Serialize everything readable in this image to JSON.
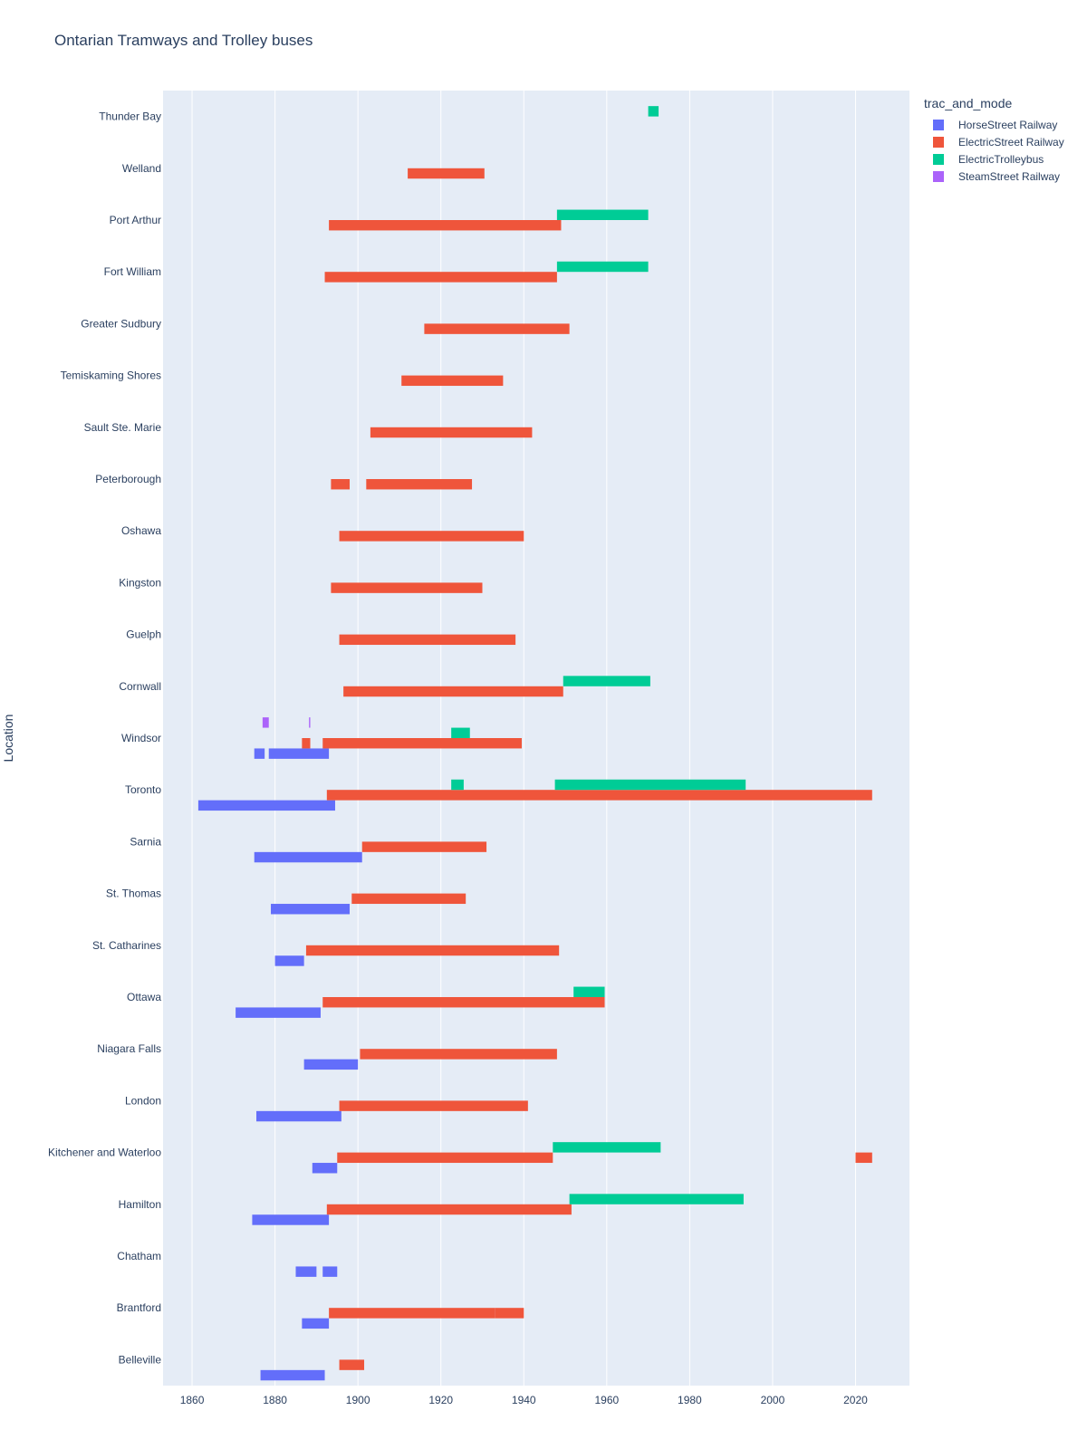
{
  "chart_data": {
    "type": "bar",
    "orientation": "horizontal-timeline",
    "title": "Ontarian Tramways and Trolley buses",
    "ylabel": "Location",
    "xlabel": "",
    "xlim": [
      1853,
      2033
    ],
    "xticks": [
      1860,
      1880,
      1900,
      1920,
      1940,
      1960,
      1980,
      2000,
      2020
    ],
    "grid": true,
    "legend_position": "top-right",
    "legend_title": "trac_and_mode",
    "categories": [
      "Thunder Bay",
      "Welland",
      "Port Arthur",
      "Fort William",
      "Greater Sudbury",
      "Temiskaming Shores",
      "Sault Ste. Marie",
      "Peterborough",
      "Oshawa",
      "Kingston",
      "Guelph",
      "Cornwall",
      "Windsor",
      "Toronto",
      "Sarnia",
      "St. Thomas",
      "St. Catharines",
      "Ottawa",
      "Niagara Falls",
      "London",
      "Kitchener and Waterloo",
      "Hamilton",
      "Chatham",
      "Brantford",
      "Belleville"
    ],
    "series": [
      {
        "name": "HorseStreet Railway",
        "color": "#636efa",
        "intervals": [
          {
            "location": "Windsor",
            "start": 1875,
            "end": 1877.5
          },
          {
            "location": "Windsor",
            "start": 1878.5,
            "end": 1893
          },
          {
            "location": "Toronto",
            "start": 1861.5,
            "end": 1894.5
          },
          {
            "location": "Sarnia",
            "start": 1875,
            "end": 1901
          },
          {
            "location": "St. Thomas",
            "start": 1879,
            "end": 1898
          },
          {
            "location": "St. Catharines",
            "start": 1880,
            "end": 1887
          },
          {
            "location": "Ottawa",
            "start": 1870.5,
            "end": 1891
          },
          {
            "location": "Niagara Falls",
            "start": 1887,
            "end": 1900
          },
          {
            "location": "London",
            "start": 1875.5,
            "end": 1896
          },
          {
            "location": "Kitchener and Waterloo",
            "start": 1889,
            "end": 1895
          },
          {
            "location": "Hamilton",
            "start": 1874.5,
            "end": 1893
          },
          {
            "location": "Chatham",
            "start": 1885,
            "end": 1890
          },
          {
            "location": "Chatham",
            "start": 1891.5,
            "end": 1895
          },
          {
            "location": "Brantford",
            "start": 1886.5,
            "end": 1893
          },
          {
            "location": "Belleville",
            "start": 1876.5,
            "end": 1892
          }
        ]
      },
      {
        "name": "ElectricStreet Railway",
        "color": "#ef553b",
        "intervals": [
          {
            "location": "Welland",
            "start": 1912,
            "end": 1930.5
          },
          {
            "location": "Port Arthur",
            "start": 1893,
            "end": 1949
          },
          {
            "location": "Fort William",
            "start": 1892,
            "end": 1948
          },
          {
            "location": "Greater Sudbury",
            "start": 1916,
            "end": 1951
          },
          {
            "location": "Temiskaming Shores",
            "start": 1910.5,
            "end": 1935
          },
          {
            "location": "Sault Ste. Marie",
            "start": 1903,
            "end": 1942
          },
          {
            "location": "Peterborough",
            "start": 1893.5,
            "end": 1898
          },
          {
            "location": "Peterborough",
            "start": 1902,
            "end": 1927.5
          },
          {
            "location": "Oshawa",
            "start": 1895.5,
            "end": 1940
          },
          {
            "location": "Kingston",
            "start": 1893.5,
            "end": 1930
          },
          {
            "location": "Guelph",
            "start": 1895.5,
            "end": 1938
          },
          {
            "location": "Cornwall",
            "start": 1896.5,
            "end": 1949.5
          },
          {
            "location": "Windsor",
            "start": 1886.5,
            "end": 1888.5
          },
          {
            "location": "Windsor",
            "start": 1891.5,
            "end": 1939.5
          },
          {
            "location": "Toronto",
            "start": 1892.5,
            "end": 2024
          },
          {
            "location": "Sarnia",
            "start": 1901,
            "end": 1931
          },
          {
            "location": "St. Thomas",
            "start": 1898.5,
            "end": 1926
          },
          {
            "location": "St. Catharines",
            "start": 1887.5,
            "end": 1948.5
          },
          {
            "location": "Ottawa",
            "start": 1891.5,
            "end": 1959.5
          },
          {
            "location": "Niagara Falls",
            "start": 1900.5,
            "end": 1948
          },
          {
            "location": "London",
            "start": 1895.5,
            "end": 1941
          },
          {
            "location": "Kitchener and Waterloo",
            "start": 1895,
            "end": 1947
          },
          {
            "location": "Kitchener and Waterloo",
            "start": 2020,
            "end": 2024
          },
          {
            "location": "Hamilton",
            "start": 1892.5,
            "end": 1951.5
          },
          {
            "location": "Brantford",
            "start": 1893,
            "end": 1933
          },
          {
            "location": "Brantford",
            "start": 1933,
            "end": 1940
          },
          {
            "location": "Belleville",
            "start": 1895.5,
            "end": 1901.5
          }
        ]
      },
      {
        "name": "ElectricTrolleybus",
        "color": "#00cc96",
        "intervals": [
          {
            "location": "Thunder Bay",
            "start": 1970,
            "end": 1972.5
          },
          {
            "location": "Port Arthur",
            "start": 1948,
            "end": 1970
          },
          {
            "location": "Fort William",
            "start": 1948,
            "end": 1970
          },
          {
            "location": "Cornwall",
            "start": 1949.5,
            "end": 1970.5
          },
          {
            "location": "Windsor",
            "start": 1922.5,
            "end": 1927
          },
          {
            "location": "Toronto",
            "start": 1922.5,
            "end": 1925.5
          },
          {
            "location": "Toronto",
            "start": 1947.5,
            "end": 1993.5
          },
          {
            "location": "Ottawa",
            "start": 1952,
            "end": 1959.5
          },
          {
            "location": "Kitchener and Waterloo",
            "start": 1947,
            "end": 1973
          },
          {
            "location": "Hamilton",
            "start": 1951,
            "end": 1993
          }
        ]
      },
      {
        "name": "SteamStreet Railway",
        "color": "#ab63fa",
        "intervals": [
          {
            "location": "Windsor",
            "start": 1877,
            "end": 1878.5
          },
          {
            "location": "Windsor",
            "start": 1888.2,
            "end": 1888.5
          }
        ]
      }
    ]
  }
}
